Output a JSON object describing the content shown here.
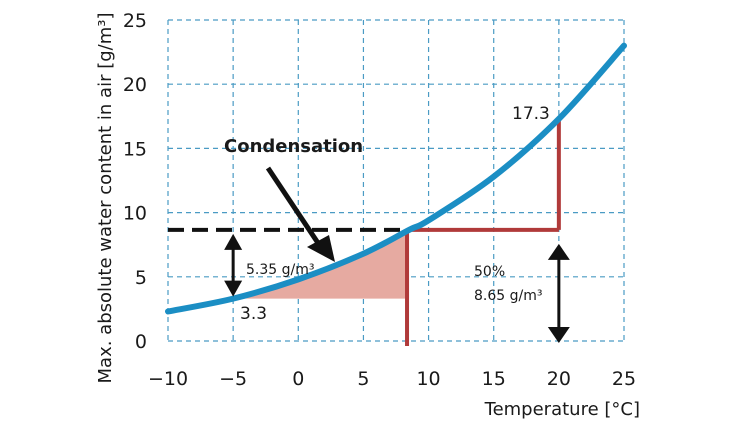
{
  "chart_data": {
    "type": "line",
    "xlabel": "Temperature [°C]",
    "ylabel": "Max. absolute water content in air [g/m³]",
    "xlim": [
      -10,
      25
    ],
    "ylim": [
      0,
      25
    ],
    "x_ticks": [
      -10,
      -5,
      0,
      5,
      10,
      15,
      20,
      25
    ],
    "y_ticks": [
      0,
      5,
      10,
      15,
      20,
      25
    ],
    "grid": true,
    "series": [
      {
        "x": [
          -10,
          -5,
          0,
          5,
          8.5,
          10,
          15,
          20,
          25
        ],
        "y": [
          2.3,
          3.3,
          4.8,
          6.8,
          8.65,
          9.4,
          12.8,
          17.3,
          23.0
        ]
      }
    ],
    "annotations": {
      "condensation_label": "Condensation",
      "diff_label": "5.35 g/m³",
      "humidity_label": "50%",
      "abs_label": "8.65 g/m³",
      "val_low": "3.3",
      "val_high": "17.3"
    },
    "markers": {
      "dew_point_x": 8.5,
      "half_level_y": 8.65,
      "low_point": [
        -5,
        3.3
      ],
      "high_point": [
        20,
        17.3
      ]
    },
    "colors": {
      "curve": "#1b8ec4",
      "grid": "#4a9bc4",
      "red": "#b03a3a",
      "fill": "#e6aaa1",
      "dashed": "#111111"
    }
  }
}
